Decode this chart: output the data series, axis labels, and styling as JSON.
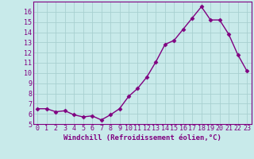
{
  "x": [
    0,
    1,
    2,
    3,
    4,
    5,
    6,
    7,
    8,
    9,
    10,
    11,
    12,
    13,
    14,
    15,
    16,
    17,
    18,
    19,
    20,
    21,
    22,
    23
  ],
  "y": [
    6.5,
    6.5,
    6.2,
    6.3,
    5.9,
    5.7,
    5.8,
    5.4,
    5.9,
    6.5,
    7.7,
    8.5,
    9.6,
    11.1,
    12.8,
    13.2,
    14.3,
    15.4,
    16.5,
    15.2,
    15.2,
    13.8,
    11.8,
    10.2
  ],
  "line_color": "#800080",
  "marker": "D",
  "markersize": 2.5,
  "linewidth": 1.0,
  "bg_color": "#c8eaea",
  "grid_color": "#a8d0d0",
  "xlabel": "Windchill (Refroidissement éolien,°C)",
  "xlabel_fontsize": 6.5,
  "tick_fontsize": 6.0,
  "ylim": [
    5,
    17
  ],
  "xlim": [
    -0.5,
    23.5
  ],
  "yticks": [
    5,
    6,
    7,
    8,
    9,
    10,
    11,
    12,
    13,
    14,
    15,
    16
  ],
  "xticks": [
    0,
    1,
    2,
    3,
    4,
    5,
    6,
    7,
    8,
    9,
    10,
    11,
    12,
    13,
    14,
    15,
    16,
    17,
    18,
    19,
    20,
    21,
    22,
    23
  ]
}
